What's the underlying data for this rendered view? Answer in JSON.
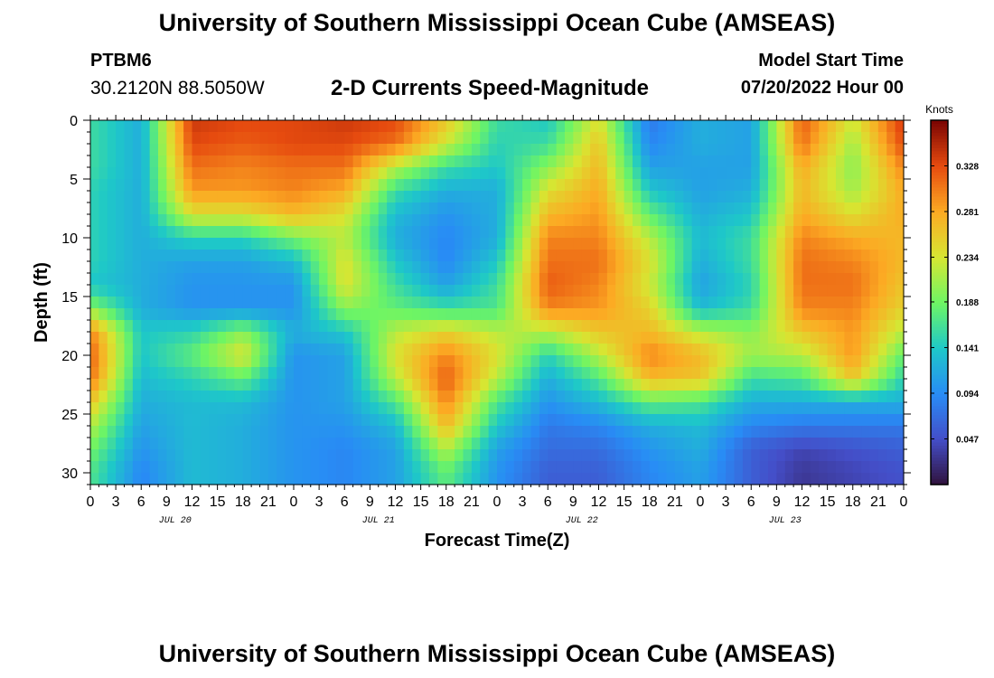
{
  "header": {
    "title": "University of Southern Mississippi Ocean Cube (AMSEAS)",
    "station_name": "PTBM6",
    "station_coords": "30.2120N  88.5050W",
    "plot_title": "2-D Currents Speed-Magnitude",
    "start_label": "Model Start Time",
    "start_value": "07/20/2022 Hour 00"
  },
  "footer": {
    "title": "University of Southern Mississippi Ocean Cube (AMSEAS)"
  },
  "chart_data": {
    "type": "heatmap",
    "xlabel": "Forecast Time(Z)",
    "ylabel": "Depth (ft)",
    "x_unit": "hours from 07/20/2022 00Z",
    "xlim": [
      0,
      96
    ],
    "ylim": [
      31,
      0
    ],
    "x_tick_labels": [
      "0",
      "3",
      "6",
      "9",
      "12",
      "15",
      "18",
      "21",
      "0",
      "3",
      "6",
      "9",
      "12",
      "15",
      "18",
      "21",
      "0",
      "3",
      "6",
      "9",
      "12",
      "15",
      "18",
      "21",
      "0",
      "3",
      "6",
      "9",
      "12",
      "15",
      "18",
      "21",
      "0"
    ],
    "day_labels": [
      "JUL 20",
      "JUL 21",
      "JUL 22",
      "JUL 23"
    ],
    "y_ticks": [
      0,
      5,
      10,
      15,
      20,
      25,
      30
    ],
    "colorbar": {
      "label": "Knots",
      "range": [
        0.0,
        0.375
      ],
      "ticks": [
        "0.047",
        "0.094",
        "0.141",
        "0.188",
        "0.234",
        "0.281",
        "0.328"
      ],
      "tick_values": [
        0.047,
        0.094,
        0.141,
        0.188,
        0.234,
        0.281,
        0.328
      ]
    },
    "depths_ft": [
      0,
      2,
      4,
      6,
      8,
      10,
      12,
      14,
      16,
      18,
      20,
      22,
      24,
      26,
      28,
      30
    ],
    "times_h": [
      0,
      6,
      12,
      18,
      24,
      30,
      36,
      42,
      48,
      54,
      60,
      66,
      72,
      78,
      84,
      90,
      96
    ],
    "values": [
      [
        0.16,
        0.12,
        0.34,
        0.33,
        0.33,
        0.34,
        0.33,
        0.26,
        0.16,
        0.14,
        0.24,
        0.08,
        0.12,
        0.11,
        0.32,
        0.23,
        0.34
      ],
      [
        0.16,
        0.12,
        0.33,
        0.32,
        0.33,
        0.33,
        0.31,
        0.23,
        0.15,
        0.16,
        0.26,
        0.09,
        0.12,
        0.11,
        0.31,
        0.21,
        0.33
      ],
      [
        0.16,
        0.12,
        0.31,
        0.3,
        0.31,
        0.31,
        0.22,
        0.16,
        0.14,
        0.2,
        0.27,
        0.11,
        0.11,
        0.11,
        0.28,
        0.2,
        0.3
      ],
      [
        0.15,
        0.12,
        0.29,
        0.29,
        0.3,
        0.28,
        0.16,
        0.12,
        0.12,
        0.24,
        0.28,
        0.14,
        0.11,
        0.12,
        0.27,
        0.21,
        0.28
      ],
      [
        0.15,
        0.12,
        0.24,
        0.24,
        0.27,
        0.24,
        0.13,
        0.1,
        0.12,
        0.27,
        0.29,
        0.18,
        0.12,
        0.14,
        0.28,
        0.24,
        0.28
      ],
      [
        0.15,
        0.12,
        0.15,
        0.15,
        0.19,
        0.22,
        0.12,
        0.09,
        0.12,
        0.3,
        0.3,
        0.22,
        0.13,
        0.16,
        0.3,
        0.28,
        0.27
      ],
      [
        0.15,
        0.12,
        0.11,
        0.11,
        0.13,
        0.24,
        0.14,
        0.09,
        0.14,
        0.31,
        0.31,
        0.24,
        0.12,
        0.16,
        0.31,
        0.3,
        0.27
      ],
      [
        0.14,
        0.12,
        0.1,
        0.1,
        0.1,
        0.24,
        0.16,
        0.11,
        0.16,
        0.32,
        0.3,
        0.23,
        0.11,
        0.15,
        0.31,
        0.31,
        0.26
      ],
      [
        0.2,
        0.12,
        0.1,
        0.1,
        0.1,
        0.2,
        0.18,
        0.16,
        0.17,
        0.3,
        0.29,
        0.25,
        0.13,
        0.16,
        0.3,
        0.3,
        0.25
      ],
      [
        0.3,
        0.14,
        0.15,
        0.2,
        0.12,
        0.14,
        0.22,
        0.25,
        0.22,
        0.22,
        0.26,
        0.27,
        0.22,
        0.2,
        0.26,
        0.29,
        0.22
      ],
      [
        0.32,
        0.14,
        0.18,
        0.24,
        0.1,
        0.11,
        0.24,
        0.3,
        0.24,
        0.15,
        0.22,
        0.3,
        0.27,
        0.21,
        0.22,
        0.29,
        0.18
      ],
      [
        0.31,
        0.13,
        0.15,
        0.18,
        0.1,
        0.11,
        0.22,
        0.32,
        0.22,
        0.12,
        0.17,
        0.27,
        0.26,
        0.16,
        0.17,
        0.26,
        0.15
      ],
      [
        0.26,
        0.12,
        0.13,
        0.13,
        0.1,
        0.11,
        0.17,
        0.3,
        0.17,
        0.1,
        0.13,
        0.18,
        0.17,
        0.12,
        0.12,
        0.12,
        0.12
      ],
      [
        0.22,
        0.11,
        0.13,
        0.12,
        0.1,
        0.1,
        0.13,
        0.27,
        0.14,
        0.08,
        0.09,
        0.12,
        0.13,
        0.09,
        0.08,
        0.08,
        0.08
      ],
      [
        0.19,
        0.1,
        0.13,
        0.12,
        0.1,
        0.09,
        0.11,
        0.22,
        0.11,
        0.07,
        0.07,
        0.1,
        0.12,
        0.06,
        0.04,
        0.05,
        0.06
      ],
      [
        0.17,
        0.09,
        0.13,
        0.12,
        0.1,
        0.09,
        0.11,
        0.18,
        0.1,
        0.06,
        0.06,
        0.09,
        0.11,
        0.06,
        0.03,
        0.04,
        0.05
      ]
    ]
  }
}
